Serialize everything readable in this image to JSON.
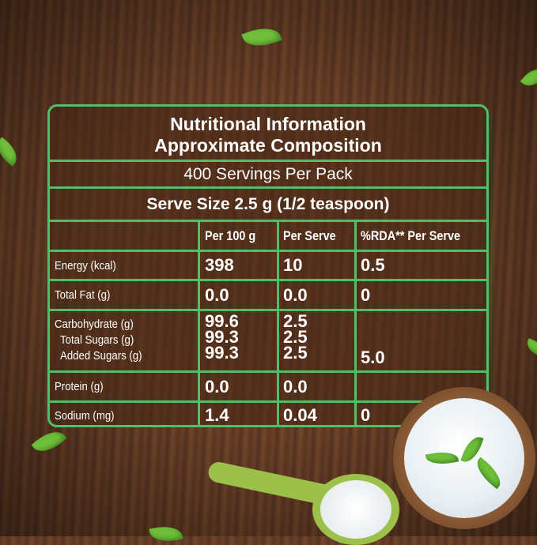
{
  "title_line1": "Nutritional Information",
  "title_line2": "Approximate Composition",
  "servings": "400 Servings Per Pack",
  "serve_size": "Serve Size 2.5 g (1/2 teaspoon)",
  "columns": [
    "",
    "Per 100 g",
    "Per Serve",
    "%RDA** Per Serve"
  ],
  "rows": [
    {
      "label": "Energy (kcal)",
      "per100": "398",
      "perServe": "10",
      "rda": "0.5"
    },
    {
      "label": "Total Fat (g)",
      "per100": "0.0",
      "perServe": "0.0",
      "rda": "0"
    },
    {
      "label": "Carbohydrate (g)",
      "per100": "99.6",
      "perServe": "2.5",
      "rda": ""
    },
    {
      "label": "Total Sugars (g)",
      "per100": "99.3",
      "perServe": "2.5",
      "rda": ""
    },
    {
      "label": "Added Sugars (g)",
      "per100": "99.3",
      "perServe": "2.5",
      "rda": "5.0"
    },
    {
      "label": "Protein (g)",
      "per100": "0.0",
      "perServe": "0.0",
      "rda": ""
    },
    {
      "label": "Sodium (mg)",
      "per100": "1.4",
      "perServe": "0.04",
      "rda": "0"
    }
  ],
  "colors": {
    "border": "#4fbf6a",
    "wood": "#5e3822",
    "text": "#ffffff"
  }
}
